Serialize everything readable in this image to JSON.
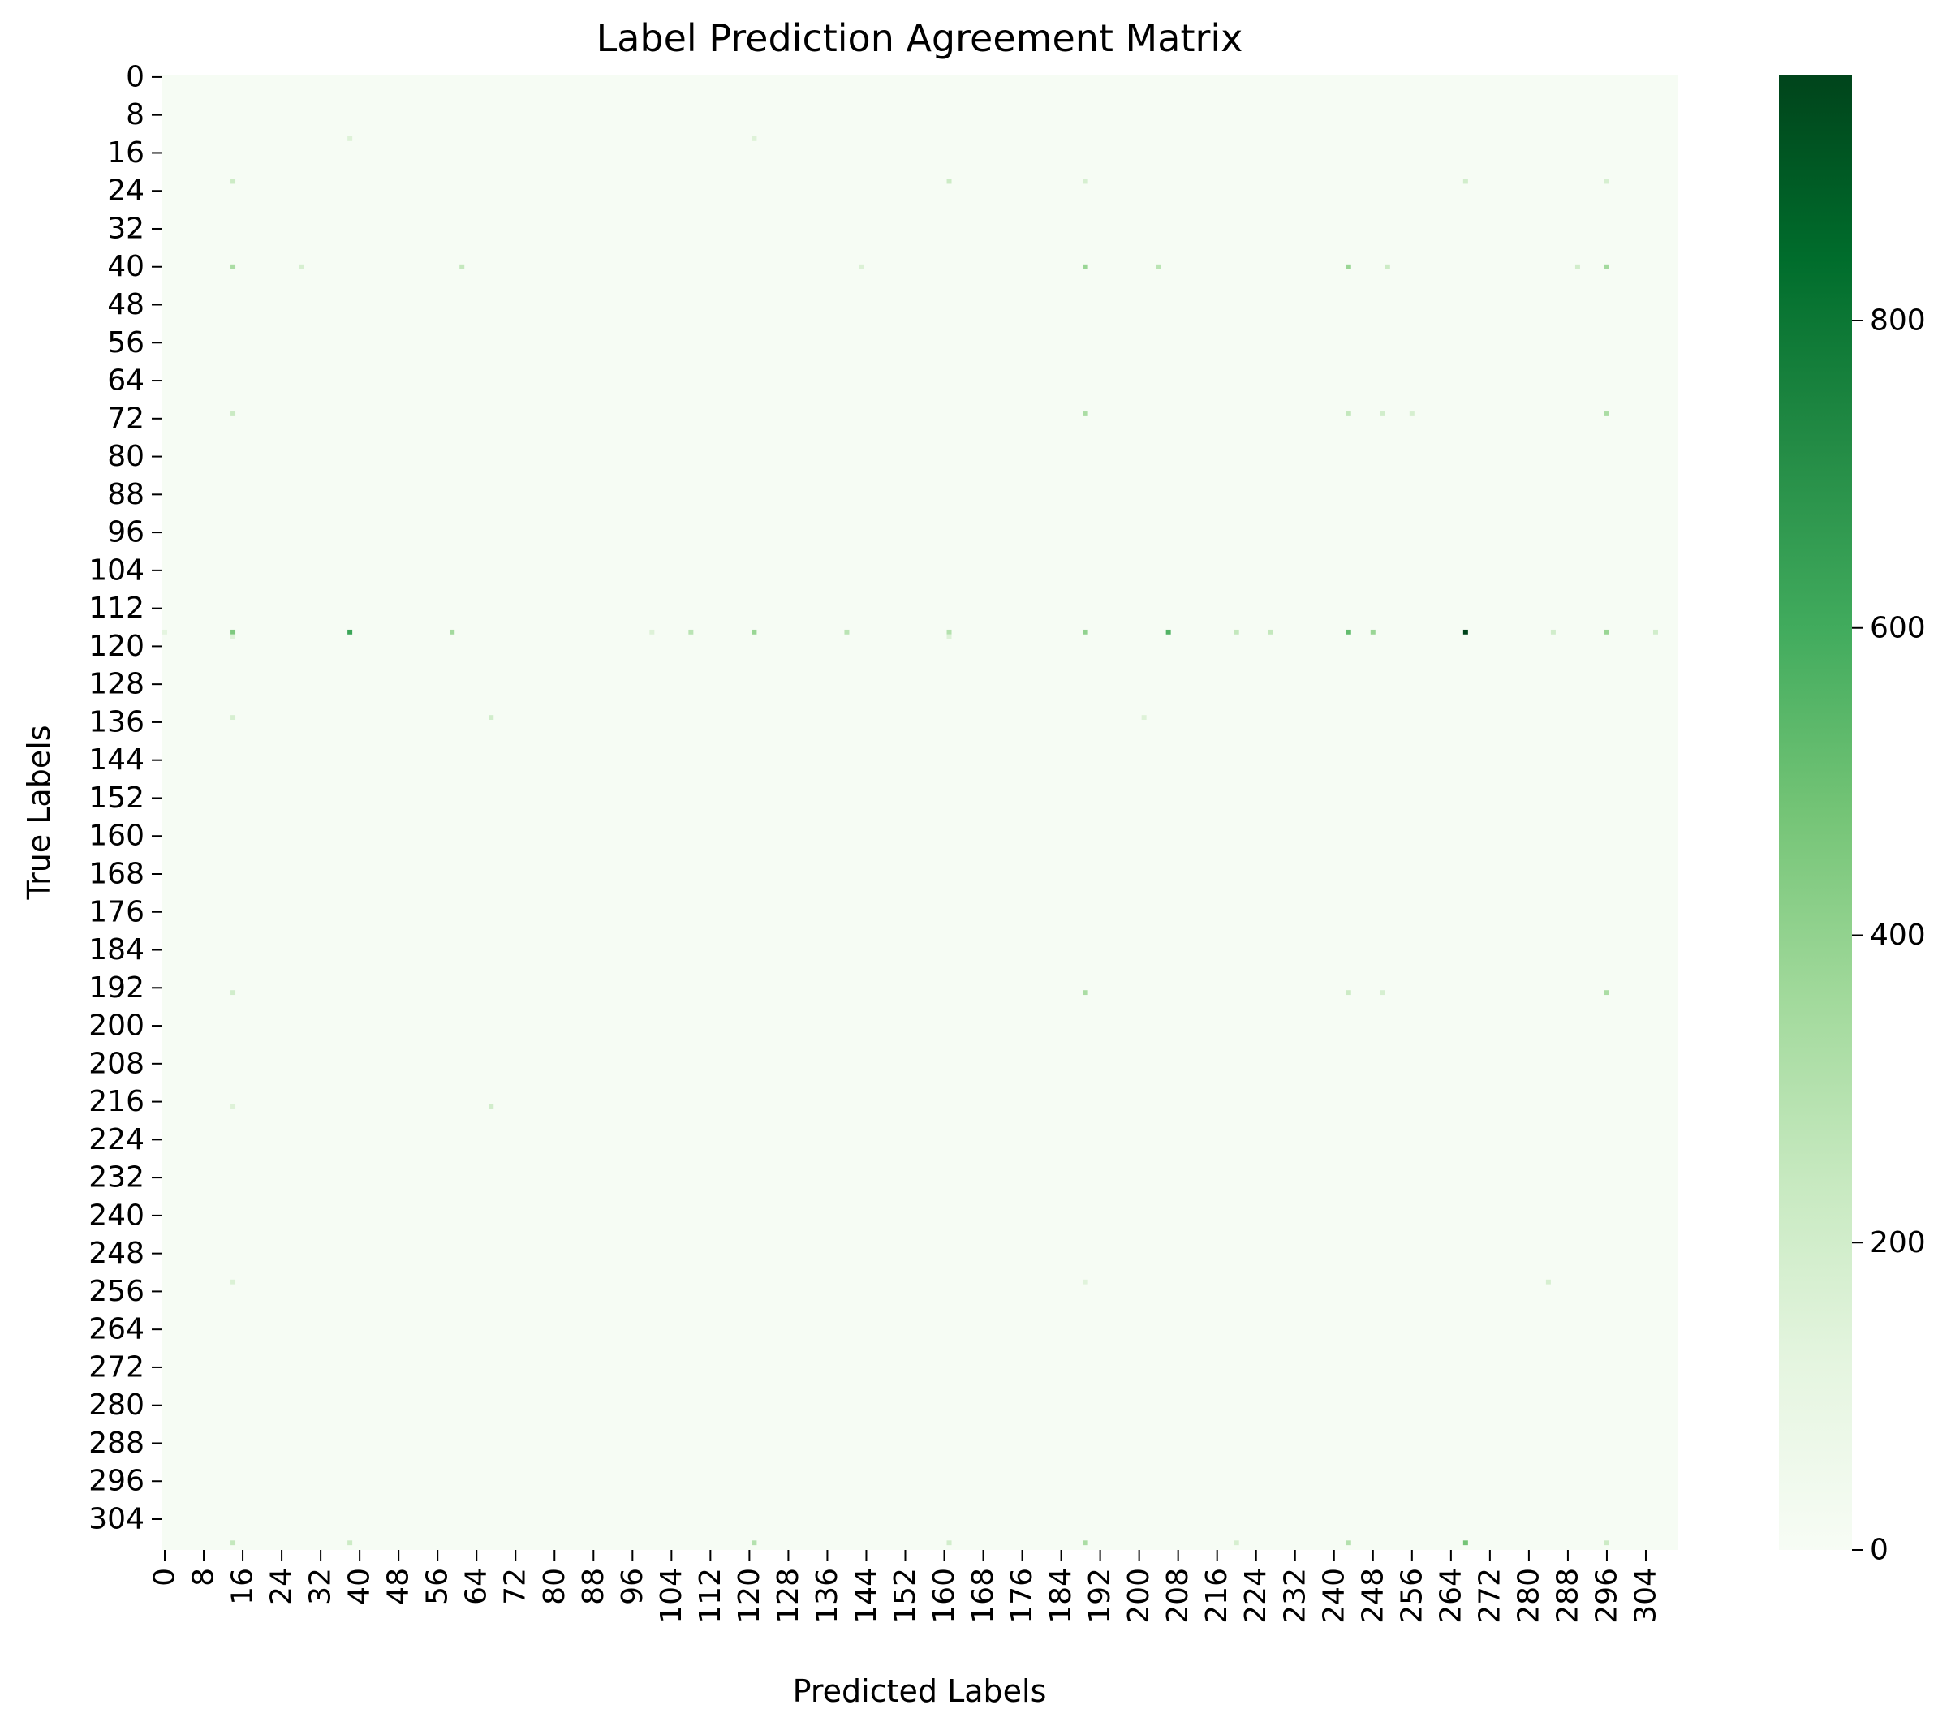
{
  "chart_data": {
    "type": "heatmap",
    "title": "Label Prediction Agreement Matrix",
    "xlabel": "Predicted Labels",
    "ylabel": "True Labels",
    "n_rows": 311,
    "n_cols": 311,
    "x_ticks": [
      0,
      8,
      16,
      24,
      32,
      40,
      48,
      56,
      64,
      72,
      80,
      88,
      96,
      104,
      112,
      120,
      128,
      136,
      144,
      152,
      160,
      168,
      176,
      184,
      192,
      200,
      208,
      216,
      224,
      232,
      240,
      248,
      256,
      264,
      272,
      280,
      288,
      296,
      304
    ],
    "y_ticks": [
      0,
      8,
      16,
      24,
      32,
      40,
      48,
      56,
      64,
      72,
      80,
      88,
      96,
      104,
      112,
      120,
      128,
      136,
      144,
      152,
      160,
      168,
      176,
      184,
      192,
      200,
      208,
      216,
      224,
      232,
      240,
      248,
      256,
      264,
      272,
      280,
      288,
      296,
      304
    ],
    "colorbar": {
      "cmap": "Greens",
      "vmin": 0,
      "vmax": 960,
      "ticks": [
        0,
        200,
        400,
        600,
        800
      ],
      "colors": [
        "#f7fcf5",
        "#e5f5e0",
        "#c7e9c0",
        "#a1d99b",
        "#74c476",
        "#41ab5d",
        "#238b45",
        "#006d2c",
        "#00441b"
      ]
    },
    "background_value": 5,
    "cells": [
      {
        "row": 117,
        "col": 267,
        "value": 960
      },
      {
        "row": 117,
        "col": 38,
        "value": 620
      },
      {
        "row": 117,
        "col": 206,
        "value": 560
      },
      {
        "row": 117,
        "col": 243,
        "value": 520
      },
      {
        "row": 117,
        "col": 14,
        "value": 450
      },
      {
        "row": 117,
        "col": 189,
        "value": 400
      },
      {
        "row": 117,
        "col": 248,
        "value": 380
      },
      {
        "row": 117,
        "col": 296,
        "value": 380
      },
      {
        "row": 117,
        "col": 121,
        "value": 380
      },
      {
        "row": 117,
        "col": 59,
        "value": 350
      },
      {
        "row": 117,
        "col": 161,
        "value": 300
      },
      {
        "row": 117,
        "col": 140,
        "value": 280
      },
      {
        "row": 117,
        "col": 108,
        "value": 280
      },
      {
        "row": 117,
        "col": 220,
        "value": 250
      },
      {
        "row": 117,
        "col": 227,
        "value": 250
      },
      {
        "row": 117,
        "col": 306,
        "value": 200
      },
      {
        "row": 117,
        "col": 285,
        "value": 200
      },
      {
        "row": 117,
        "col": 100,
        "value": 150
      },
      {
        "row": 117,
        "col": 0,
        "value": 120
      },
      {
        "row": 40,
        "col": 189,
        "value": 380
      },
      {
        "row": 40,
        "col": 243,
        "value": 380
      },
      {
        "row": 40,
        "col": 296,
        "value": 350
      },
      {
        "row": 40,
        "col": 14,
        "value": 330
      },
      {
        "row": 40,
        "col": 204,
        "value": 280
      },
      {
        "row": 40,
        "col": 61,
        "value": 250
      },
      {
        "row": 40,
        "col": 251,
        "value": 220
      },
      {
        "row": 40,
        "col": 290,
        "value": 200
      },
      {
        "row": 40,
        "col": 28,
        "value": 180
      },
      {
        "row": 40,
        "col": 143,
        "value": 160
      },
      {
        "row": 71,
        "col": 189,
        "value": 330
      },
      {
        "row": 71,
        "col": 296,
        "value": 330
      },
      {
        "row": 71,
        "col": 243,
        "value": 250
      },
      {
        "row": 71,
        "col": 14,
        "value": 230
      },
      {
        "row": 71,
        "col": 250,
        "value": 200
      },
      {
        "row": 71,
        "col": 256,
        "value": 180
      },
      {
        "row": 193,
        "col": 189,
        "value": 330
      },
      {
        "row": 193,
        "col": 296,
        "value": 330
      },
      {
        "row": 193,
        "col": 243,
        "value": 220
      },
      {
        "row": 193,
        "col": 14,
        "value": 200
      },
      {
        "row": 193,
        "col": 250,
        "value": 180
      },
      {
        "row": 309,
        "col": 267,
        "value": 480
      },
      {
        "row": 309,
        "col": 189,
        "value": 330
      },
      {
        "row": 309,
        "col": 121,
        "value": 300
      },
      {
        "row": 309,
        "col": 243,
        "value": 300
      },
      {
        "row": 309,
        "col": 14,
        "value": 250
      },
      {
        "row": 309,
        "col": 38,
        "value": 220
      },
      {
        "row": 309,
        "col": 296,
        "value": 220
      },
      {
        "row": 309,
        "col": 161,
        "value": 200
      },
      {
        "row": 309,
        "col": 220,
        "value": 180
      },
      {
        "row": 22,
        "col": 14,
        "value": 220
      },
      {
        "row": 22,
        "col": 161,
        "value": 220
      },
      {
        "row": 22,
        "col": 267,
        "value": 200
      },
      {
        "row": 22,
        "col": 189,
        "value": 180
      },
      {
        "row": 22,
        "col": 296,
        "value": 180
      },
      {
        "row": 13,
        "col": 38,
        "value": 150
      },
      {
        "row": 13,
        "col": 121,
        "value": 150
      },
      {
        "row": 135,
        "col": 67,
        "value": 200
      },
      {
        "row": 135,
        "col": 14,
        "value": 180
      },
      {
        "row": 135,
        "col": 201,
        "value": 150
      },
      {
        "row": 217,
        "col": 67,
        "value": 200
      },
      {
        "row": 217,
        "col": 14,
        "value": 150
      },
      {
        "row": 254,
        "col": 284,
        "value": 180
      },
      {
        "row": 254,
        "col": 14,
        "value": 160
      },
      {
        "row": 254,
        "col": 189,
        "value": 140
      },
      {
        "row": 118,
        "col": 161,
        "value": 150
      },
      {
        "row": 118,
        "col": 14,
        "value": 150
      }
    ]
  }
}
